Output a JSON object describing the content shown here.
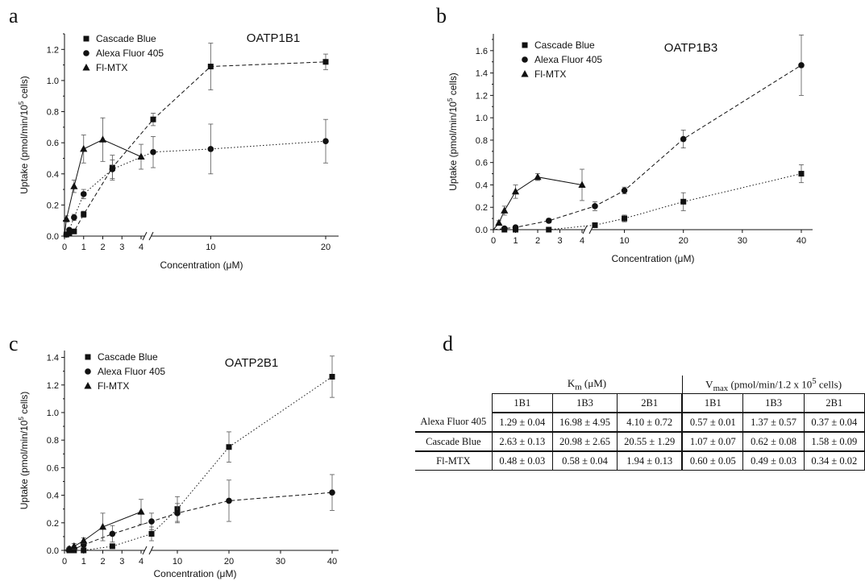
{
  "panels": {
    "a": "a",
    "b": "b",
    "c": "c",
    "d": "d"
  },
  "chart_data": [
    {
      "id": "a",
      "type": "scatter",
      "title": "OATP1B1",
      "xlabel": "Concentration (μM)",
      "ylabel": "Uptake (pmol/min/10⁵ cells)",
      "x_break": true,
      "xticks": [
        "0",
        "1",
        "2",
        "3",
        "4",
        "10",
        "20"
      ],
      "yticks": [
        "0.0",
        "0.2",
        "0.4",
        "0.6",
        "0.8",
        "1.0",
        "1.2"
      ],
      "ylim": [
        0,
        1.3
      ],
      "legend": [
        "Cascade Blue",
        "Alexa Fluor 405",
        "Fl-MTX"
      ],
      "legend_position": "top-left",
      "series": [
        {
          "name": "Cascade Blue",
          "marker": "square",
          "fit": "dashed",
          "points": [
            [
              0.1,
              0.01,
              0.01
            ],
            [
              0.25,
              0.02,
              0.01
            ],
            [
              0.5,
              0.03,
              0.01
            ],
            [
              1,
              0.14,
              0.02
            ],
            [
              2.5,
              0.44,
              0.08
            ],
            [
              5,
              0.75,
              0.04
            ],
            [
              10,
              1.09,
              0.15
            ],
            [
              20,
              1.12,
              0.05
            ]
          ]
        },
        {
          "name": "Alexa Fluor 405",
          "marker": "circle",
          "fit": "dotted",
          "points": [
            [
              0.1,
              0.01,
              0.01
            ],
            [
              0.25,
              0.04,
              0.01
            ],
            [
              0.5,
              0.12,
              0.02
            ],
            [
              1,
              0.27,
              0.03
            ],
            [
              2.5,
              0.43,
              0.06
            ],
            [
              5,
              0.54,
              0.1
            ],
            [
              10,
              0.56,
              0.16
            ],
            [
              20,
              0.61,
              0.14
            ]
          ]
        },
        {
          "name": "Fl-MTX",
          "marker": "triangle",
          "fit": "solid",
          "points": [
            [
              0.1,
              0.11,
              0.02
            ],
            [
              0.5,
              0.32,
              0.04
            ],
            [
              1,
              0.56,
              0.09
            ],
            [
              2,
              0.62,
              0.14
            ],
            [
              4,
              0.51,
              0.08
            ]
          ]
        }
      ]
    },
    {
      "id": "b",
      "type": "scatter",
      "title": "OATP1B3",
      "xlabel": "Concentration (μM)",
      "ylabel": "Uptake (pmol/min/10⁵ cells)",
      "x_break": true,
      "xticks": [
        "0",
        "1",
        "2",
        "3",
        "4",
        "10",
        "20",
        "30",
        "40"
      ],
      "yticks": [
        "0.0",
        "0.2",
        "0.4",
        "0.6",
        "0.8",
        "1.0",
        "1.2",
        "1.4",
        "1.6"
      ],
      "ylim": [
        0,
        1.75
      ],
      "legend": [
        "Cascade Blue",
        "Alexa Fluor 405",
        "Fl-MTX"
      ],
      "legend_position": "top-left",
      "series": [
        {
          "name": "Cascade Blue",
          "marker": "square",
          "fit": "dotted",
          "points": [
            [
              0.5,
              0,
              0
            ],
            [
              1,
              0,
              0
            ],
            [
              2.5,
              0,
              0
            ],
            [
              5,
              0.04,
              0.01
            ],
            [
              10,
              0.1,
              0.03
            ],
            [
              20,
              0.25,
              0.08
            ],
            [
              40,
              0.5,
              0.08
            ]
          ]
        },
        {
          "name": "Alexa Fluor 405",
          "marker": "circle",
          "fit": "dashed",
          "points": [
            [
              0.5,
              0.01,
              0.01
            ],
            [
              1,
              0.02,
              0.01
            ],
            [
              2.5,
              0.08,
              0.02
            ],
            [
              5,
              0.21,
              0.04
            ],
            [
              10,
              0.35,
              0.03
            ],
            [
              20,
              0.81,
              0.08
            ],
            [
              40,
              1.47,
              0.27
            ]
          ]
        },
        {
          "name": "Fl-MTX",
          "marker": "triangle",
          "fit": "solid",
          "points": [
            [
              0.25,
              0.06,
              0.02
            ],
            [
              0.5,
              0.17,
              0.04
            ],
            [
              1,
              0.34,
              0.06
            ],
            [
              2,
              0.47,
              0.03
            ],
            [
              4,
              0.4,
              0.14
            ]
          ]
        }
      ]
    },
    {
      "id": "c",
      "type": "scatter",
      "title": "OATP2B1",
      "xlabel": "Concentration (μM)",
      "ylabel": "Uptake (pmol/min/10⁵ cells)",
      "x_break": true,
      "xticks": [
        "0",
        "1",
        "2",
        "3",
        "4",
        "10",
        "20",
        "30",
        "40"
      ],
      "yticks": [
        "0.0",
        "0.2",
        "0.4",
        "0.6",
        "0.8",
        "1.0",
        "1.2",
        "1.4"
      ],
      "ylim": [
        0,
        1.45
      ],
      "legend": [
        "Cascade Blue",
        "Alexa Fluor 405",
        "Fl-MTX"
      ],
      "legend_position": "top-left",
      "series": [
        {
          "name": "Cascade Blue",
          "marker": "square",
          "fit": "dotted",
          "points": [
            [
              0.25,
              0,
              0
            ],
            [
              0.5,
              0,
              0
            ],
            [
              1,
              0,
              0
            ],
            [
              2.5,
              0.03,
              0.01
            ],
            [
              5,
              0.12,
              0.05
            ],
            [
              10,
              0.3,
              0.09
            ],
            [
              20,
              0.75,
              0.11
            ],
            [
              40,
              1.26,
              0.15
            ]
          ]
        },
        {
          "name": "Alexa Fluor 405",
          "marker": "circle",
          "fit": "dashed",
          "points": [
            [
              0.25,
              0.01,
              0.01
            ],
            [
              0.5,
              0.01,
              0.01
            ],
            [
              1,
              0.04,
              0.02
            ],
            [
              2.5,
              0.12,
              0.06
            ],
            [
              5,
              0.21,
              0.06
            ],
            [
              10,
              0.27,
              0.07
            ],
            [
              20,
              0.36,
              0.15
            ],
            [
              40,
              0.42,
              0.13
            ]
          ]
        },
        {
          "name": "Fl-MTX",
          "marker": "triangle",
          "fit": "solid",
          "points": [
            [
              0.25,
              0.01,
              0.01
            ],
            [
              0.5,
              0.03,
              0.02
            ],
            [
              1,
              0.07,
              0.02
            ],
            [
              2,
              0.17,
              0.1
            ],
            [
              4,
              0.28,
              0.09
            ]
          ]
        }
      ]
    }
  ],
  "table": {
    "km_header_prefix": "K",
    "km_header_sub": "m",
    "km_header_suffix": " (μM)",
    "vmax_header_prefix": "V",
    "vmax_header_sub": "max",
    "vmax_header_suffix": " (pmol/min/1.2 x 10",
    "vmax_header_sup": "5",
    "vmax_header_end": " cells)",
    "columns": [
      "1B1",
      "1B3",
      "2B1",
      "1B1",
      "1B3",
      "2B1"
    ],
    "rows": [
      {
        "label": "Alexa Fluor 405",
        "cells": [
          "1.29 ± 0.04",
          "16.98 ± 4.95",
          "4.10 ± 0.72",
          "0.57 ± 0.01",
          "1.37 ± 0.57",
          "0.37 ± 0.04"
        ]
      },
      {
        "label": "Cascade Blue",
        "cells": [
          "2.63 ± 0.13",
          "20.98 ± 2.65",
          "20.55 ± 1.29",
          "1.07 ± 0.07",
          "0.62 ± 0.08",
          "1.58 ± 0.09"
        ]
      },
      {
        "label": "Fl-MTX",
        "cells": [
          "0.48 ± 0.03",
          "0.58 ± 0.04",
          "1.94 ± 0.13",
          "0.60 ± 0.05",
          "0.49 ± 0.03",
          "0.34 ± 0.02"
        ]
      }
    ]
  }
}
